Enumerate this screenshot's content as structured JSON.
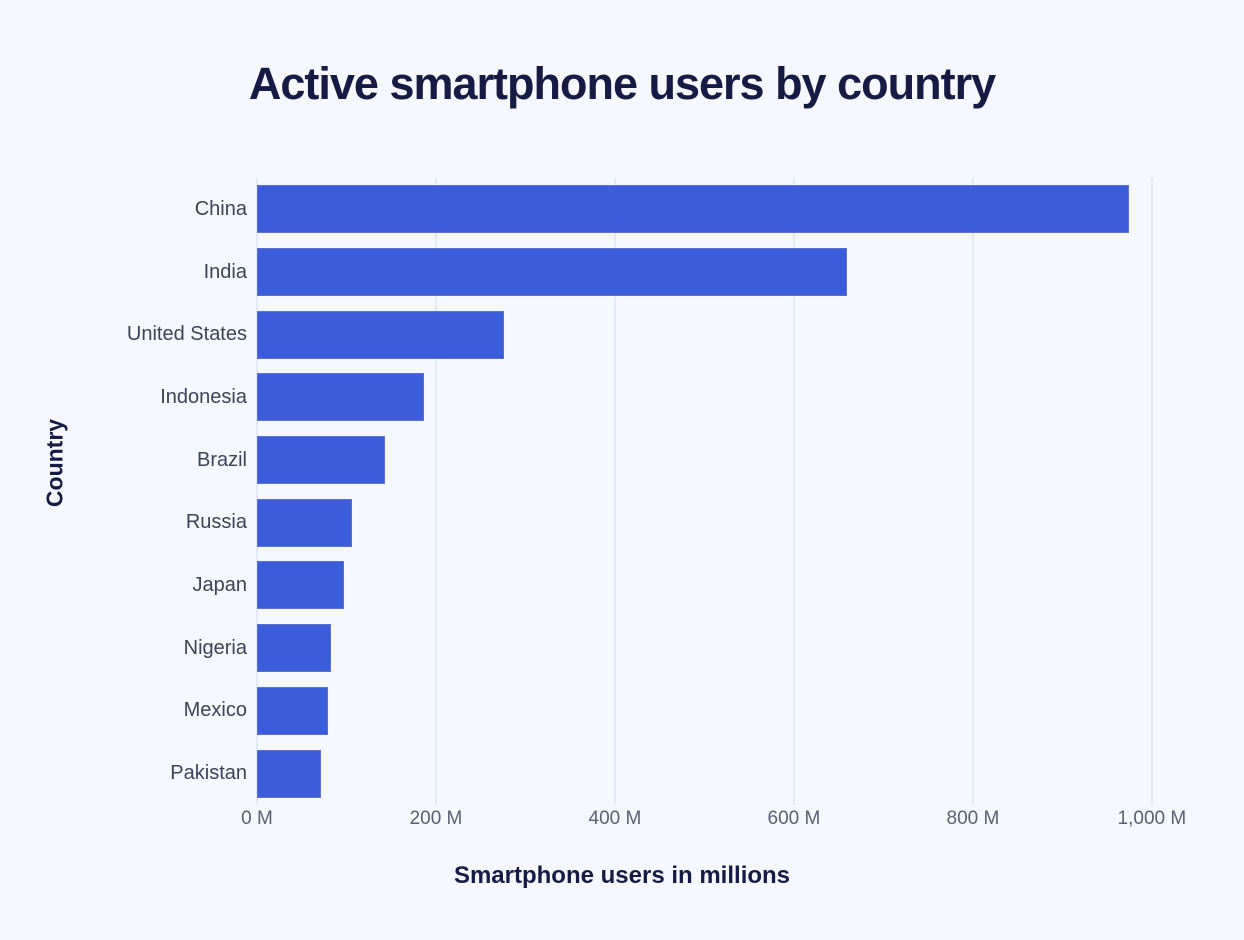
{
  "colors": {
    "background": "#F5F8FC",
    "bar_fill": "#3D5CDB",
    "heading_text": "#171A43",
    "category_text": "#3E4255",
    "tick_text": "#5B6070",
    "gridline": "#E3E8F1"
  },
  "chart_data": {
    "type": "bar",
    "orientation": "horizontal",
    "title": "Active smartphone users by country",
    "xlabel": "Smartphone users in millions",
    "ylabel": "Country",
    "categories": [
      "China",
      "India",
      "United States",
      "Indonesia",
      "Brazil",
      "Russia",
      "Japan",
      "Nigeria",
      "Mexico",
      "Pakistan"
    ],
    "values": [
      974,
      659,
      276,
      187,
      143,
      106,
      97,
      83,
      79,
      72
    ],
    "value_unit": "millions",
    "x_ticks": [
      {
        "value": 0,
        "label": "0 M"
      },
      {
        "value": 200,
        "label": "200 M"
      },
      {
        "value": 400,
        "label": "400 M"
      },
      {
        "value": 600,
        "label": "600 M"
      },
      {
        "value": 800,
        "label": "800 M"
      },
      {
        "value": 1000,
        "label": "1,000 M"
      }
    ],
    "xlim": [
      0,
      1037
    ],
    "grid": "vertical-only",
    "legend": "none"
  }
}
